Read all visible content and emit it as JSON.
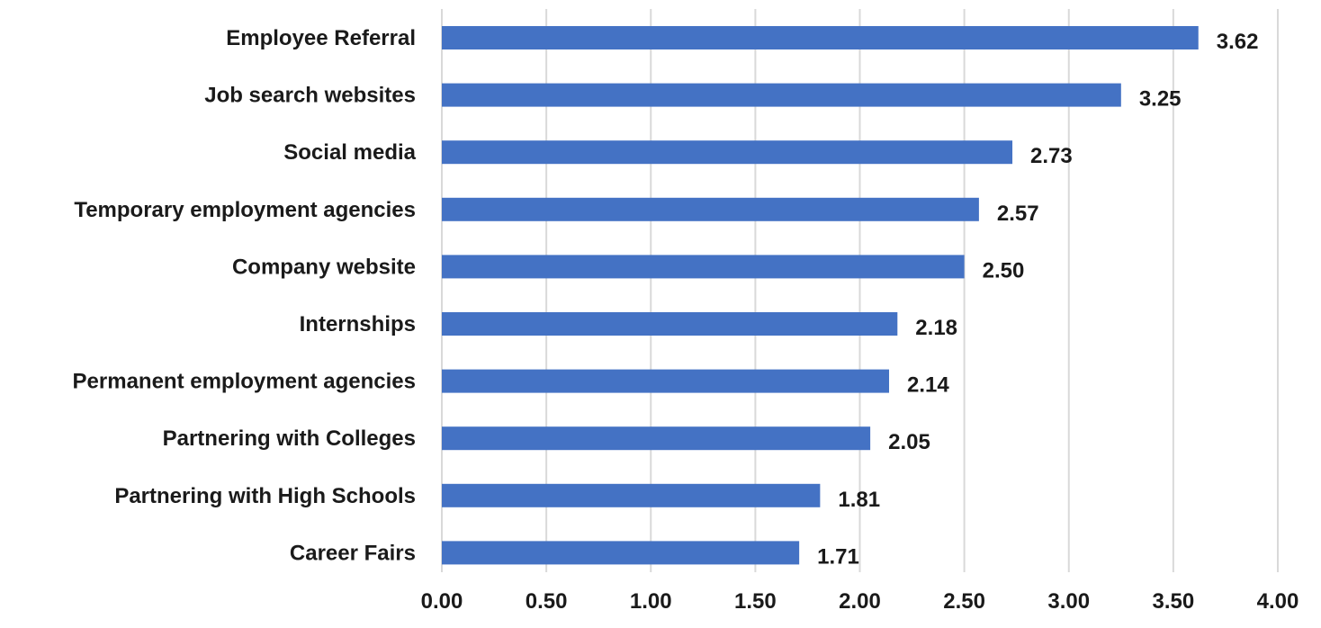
{
  "chart_data": {
    "type": "bar",
    "orientation": "horizontal",
    "title": "",
    "xlabel": "",
    "ylabel": "",
    "categories": [
      "Employee Referral",
      "Job search websites",
      "Social media",
      "Temporary employment agencies",
      "Company website",
      "Internships",
      "Permanent employment agencies",
      "Partnering with Colleges",
      "Partnering with High Schools",
      "Career Fairs"
    ],
    "values": [
      3.62,
      3.25,
      2.73,
      2.57,
      2.5,
      2.18,
      2.14,
      2.05,
      1.81,
      1.71
    ],
    "value_labels": [
      "3.62",
      "3.25",
      "2.73",
      "2.57",
      "2.50",
      "2.18",
      "2.14",
      "2.05",
      "1.81",
      "1.71"
    ],
    "xlim": [
      0,
      4
    ],
    "x_ticks": [
      0,
      0.5,
      1,
      1.5,
      2,
      2.5,
      3,
      3.5,
      4
    ],
    "x_tick_labels": [
      "0.00",
      "0.50",
      "1.00",
      "1.50",
      "2.00",
      "2.50",
      "3.00",
      "3.50",
      "4.00"
    ],
    "grid": "vertical",
    "legend": "none",
    "colors": {
      "bar": "#4472C4",
      "grid": "#D9D9D9",
      "text": "#1a1a1a"
    }
  }
}
